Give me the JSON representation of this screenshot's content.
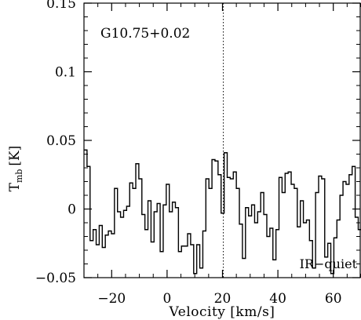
{
  "chart_data": {
    "type": "line",
    "style": "step",
    "source_label": "G10.75+0.02",
    "corner_label": "IR−quiet",
    "xlabel": "Velocity [km/s]",
    "ylabel_main": "T",
    "ylabel_sub": "mb",
    "ylabel_unit": "[K]",
    "xlim": [
      -30,
      70
    ],
    "ylim": [
      -0.05,
      0.15
    ],
    "xticks": [
      -20,
      0,
      20,
      40,
      60
    ],
    "xtick_labels": [
      "−20",
      "0",
      "20",
      "40",
      "60"
    ],
    "yticks": [
      -0.05,
      0,
      0.05,
      0.1,
      0.15
    ],
    "ytick_labels": [
      "−0.05",
      "0",
      "0.05",
      "0.1",
      "0.15"
    ],
    "reference_line": {
      "x": 20.3,
      "style": "dotted"
    },
    "channel_width": 1.1,
    "x": [
      -30.0,
      -28.9,
      -27.8,
      -26.7,
      -25.6,
      -24.5,
      -23.4,
      -22.3,
      -21.2,
      -20.1,
      -19.0,
      -17.9,
      -16.8,
      -15.7,
      -14.6,
      -13.5,
      -12.4,
      -11.3,
      -10.2,
      -9.1,
      -8.0,
      -6.9,
      -5.8,
      -4.7,
      -3.6,
      -2.5,
      -1.4,
      -0.3,
      0.8,
      1.9,
      3.0,
      4.1,
      5.2,
      6.3,
      7.4,
      8.5,
      9.6,
      10.7,
      11.8,
      12.9,
      14.0,
      15.1,
      16.2,
      17.3,
      18.4,
      19.5,
      20.6,
      21.7,
      22.8,
      23.9,
      25.0,
      26.1,
      27.2,
      28.3,
      29.4,
      30.5,
      31.6,
      32.7,
      33.8,
      34.9,
      36.0,
      37.1,
      38.2,
      39.3,
      40.4,
      41.5,
      42.6,
      43.7,
      44.8,
      45.9,
      47.0,
      48.1,
      49.2,
      50.3,
      51.4,
      52.5,
      53.6,
      54.7,
      55.8,
      56.9,
      58.0,
      59.1,
      60.2,
      61.3,
      62.4,
      63.5,
      64.6,
      65.7,
      66.8,
      67.9,
      69.0
    ],
    "y": [
      0.043,
      0.031,
      -0.023,
      -0.015,
      -0.026,
      -0.012,
      -0.028,
      -0.019,
      -0.016,
      -0.018,
      0.015,
      -0.002,
      -0.006,
      -0.001,
      0.002,
      0.019,
      0.015,
      0.033,
      0.022,
      -0.004,
      -0.015,
      0.006,
      -0.024,
      -0.002,
      0.004,
      -0.031,
      0.003,
      0.018,
      -0.002,
      0.005,
      0.001,
      -0.031,
      -0.027,
      -0.027,
      -0.018,
      -0.026,
      -0.047,
      -0.026,
      -0.043,
      -0.016,
      0.022,
      0.015,
      0.036,
      0.035,
      0.025,
      -0.003,
      0.041,
      0.023,
      0.022,
      0.027,
      0.015,
      -0.011,
      -0.036,
      0.001,
      -0.005,
      0.003,
      -0.01,
      -0.002,
      0.012,
      -0.004,
      -0.02,
      -0.014,
      -0.037,
      -0.015,
      0.023,
      0.012,
      0.026,
      0.027,
      0.018,
      0.015,
      -0.013,
      0.006,
      -0.01,
      -0.008,
      -0.023,
      -0.043,
      0.012,
      0.024,
      0.022,
      -0.035,
      -0.025,
      -0.047,
      -0.021,
      -0.008,
      0.01,
      0.02,
      0.018,
      0.025,
      0.031,
      -0.006,
      -0.015
    ]
  }
}
